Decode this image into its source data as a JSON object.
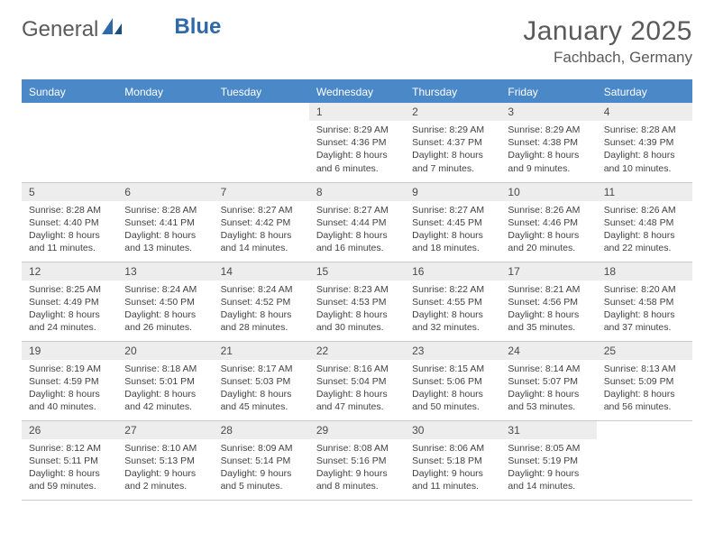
{
  "brand": {
    "part1": "General",
    "part2": "Blue"
  },
  "title": "January 2025",
  "location": "Fachbach, Germany",
  "colors": {
    "header_bar": "#4a88c7",
    "daynum_bg": "#ededed",
    "text": "#424242",
    "divider": "#4a88c7",
    "row_border": "#c9c9c9"
  },
  "weekdays": [
    "Sunday",
    "Monday",
    "Tuesday",
    "Wednesday",
    "Thursday",
    "Friday",
    "Saturday"
  ],
  "weeks": [
    [
      null,
      null,
      null,
      {
        "n": "1",
        "sr": "8:29 AM",
        "ss": "4:36 PM",
        "dl": "8 hours and 6 minutes."
      },
      {
        "n": "2",
        "sr": "8:29 AM",
        "ss": "4:37 PM",
        "dl": "8 hours and 7 minutes."
      },
      {
        "n": "3",
        "sr": "8:29 AM",
        "ss": "4:38 PM",
        "dl": "8 hours and 9 minutes."
      },
      {
        "n": "4",
        "sr": "8:28 AM",
        "ss": "4:39 PM",
        "dl": "8 hours and 10 minutes."
      }
    ],
    [
      {
        "n": "5",
        "sr": "8:28 AM",
        "ss": "4:40 PM",
        "dl": "8 hours and 11 minutes."
      },
      {
        "n": "6",
        "sr": "8:28 AM",
        "ss": "4:41 PM",
        "dl": "8 hours and 13 minutes."
      },
      {
        "n": "7",
        "sr": "8:27 AM",
        "ss": "4:42 PM",
        "dl": "8 hours and 14 minutes."
      },
      {
        "n": "8",
        "sr": "8:27 AM",
        "ss": "4:44 PM",
        "dl": "8 hours and 16 minutes."
      },
      {
        "n": "9",
        "sr": "8:27 AM",
        "ss": "4:45 PM",
        "dl": "8 hours and 18 minutes."
      },
      {
        "n": "10",
        "sr": "8:26 AM",
        "ss": "4:46 PM",
        "dl": "8 hours and 20 minutes."
      },
      {
        "n": "11",
        "sr": "8:26 AM",
        "ss": "4:48 PM",
        "dl": "8 hours and 22 minutes."
      }
    ],
    [
      {
        "n": "12",
        "sr": "8:25 AM",
        "ss": "4:49 PM",
        "dl": "8 hours and 24 minutes."
      },
      {
        "n": "13",
        "sr": "8:24 AM",
        "ss": "4:50 PM",
        "dl": "8 hours and 26 minutes."
      },
      {
        "n": "14",
        "sr": "8:24 AM",
        "ss": "4:52 PM",
        "dl": "8 hours and 28 minutes."
      },
      {
        "n": "15",
        "sr": "8:23 AM",
        "ss": "4:53 PM",
        "dl": "8 hours and 30 minutes."
      },
      {
        "n": "16",
        "sr": "8:22 AM",
        "ss": "4:55 PM",
        "dl": "8 hours and 32 minutes."
      },
      {
        "n": "17",
        "sr": "8:21 AM",
        "ss": "4:56 PM",
        "dl": "8 hours and 35 minutes."
      },
      {
        "n": "18",
        "sr": "8:20 AM",
        "ss": "4:58 PM",
        "dl": "8 hours and 37 minutes."
      }
    ],
    [
      {
        "n": "19",
        "sr": "8:19 AM",
        "ss": "4:59 PM",
        "dl": "8 hours and 40 minutes."
      },
      {
        "n": "20",
        "sr": "8:18 AM",
        "ss": "5:01 PM",
        "dl": "8 hours and 42 minutes."
      },
      {
        "n": "21",
        "sr": "8:17 AM",
        "ss": "5:03 PM",
        "dl": "8 hours and 45 minutes."
      },
      {
        "n": "22",
        "sr": "8:16 AM",
        "ss": "5:04 PM",
        "dl": "8 hours and 47 minutes."
      },
      {
        "n": "23",
        "sr": "8:15 AM",
        "ss": "5:06 PM",
        "dl": "8 hours and 50 minutes."
      },
      {
        "n": "24",
        "sr": "8:14 AM",
        "ss": "5:07 PM",
        "dl": "8 hours and 53 minutes."
      },
      {
        "n": "25",
        "sr": "8:13 AM",
        "ss": "5:09 PM",
        "dl": "8 hours and 56 minutes."
      }
    ],
    [
      {
        "n": "26",
        "sr": "8:12 AM",
        "ss": "5:11 PM",
        "dl": "8 hours and 59 minutes."
      },
      {
        "n": "27",
        "sr": "8:10 AM",
        "ss": "5:13 PM",
        "dl": "9 hours and 2 minutes."
      },
      {
        "n": "28",
        "sr": "8:09 AM",
        "ss": "5:14 PM",
        "dl": "9 hours and 5 minutes."
      },
      {
        "n": "29",
        "sr": "8:08 AM",
        "ss": "5:16 PM",
        "dl": "9 hours and 8 minutes."
      },
      {
        "n": "30",
        "sr": "8:06 AM",
        "ss": "5:18 PM",
        "dl": "9 hours and 11 minutes."
      },
      {
        "n": "31",
        "sr": "8:05 AM",
        "ss": "5:19 PM",
        "dl": "9 hours and 14 minutes."
      },
      null
    ]
  ],
  "labels": {
    "sunrise": "Sunrise: ",
    "sunset": "Sunset: ",
    "daylight": "Daylight: "
  }
}
